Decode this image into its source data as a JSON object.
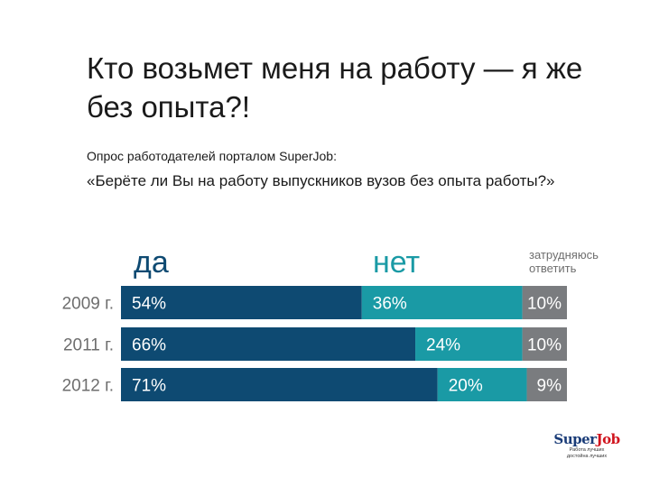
{
  "slide": {
    "title": "Кто возьмет меня на работу — я же без опыта?!",
    "subtitle": "Опрос работодателей порталом SuperJob:",
    "question": "«Берёте ли Вы на работу выпускников вузов без опыта работы?»"
  },
  "chart_data": {
    "type": "bar",
    "stacked": true,
    "orientation": "horizontal",
    "categories": [
      "2009 г.",
      "2011 г.",
      "2012 г."
    ],
    "series": [
      {
        "name": "да",
        "values": [
          54,
          66,
          71
        ],
        "labels": [
          "54%",
          "66%",
          "71%"
        ],
        "color": "#0e4a72"
      },
      {
        "name": "нет",
        "values": [
          36,
          24,
          20
        ],
        "labels": [
          "36%",
          "24%",
          "20%"
        ],
        "color": "#1a9aa5"
      },
      {
        "name": "затрудняюсь ответить",
        "values": [
          10,
          10,
          9
        ],
        "labels": [
          "10%",
          "10%",
          "9%"
        ],
        "color": "#7a7c7f"
      }
    ],
    "legend_labels": [
      "да",
      "нет",
      "затрудняюсь\nответить"
    ],
    "xlim": [
      0,
      100
    ],
    "grid": false,
    "legend": "top"
  },
  "logo": {
    "brand_super": "Super",
    "brand_job": "Job",
    "tagline": "Работа лучших\nдостойна лучших"
  }
}
